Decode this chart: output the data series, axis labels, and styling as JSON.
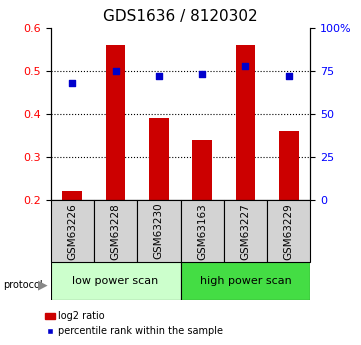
{
  "title": "GDS1636 / 8120302",
  "samples": [
    "GSM63226",
    "GSM63228",
    "GSM63230",
    "GSM63163",
    "GSM63227",
    "GSM63229"
  ],
  "log2_ratio": [
    0.22,
    0.56,
    0.39,
    0.34,
    0.56,
    0.36
  ],
  "percentile_rank": [
    68,
    75,
    72,
    73,
    78,
    72
  ],
  "bar_bottom": 0.2,
  "left_ylim": [
    0.2,
    0.6
  ],
  "right_ylim": [
    0,
    100
  ],
  "left_yticks": [
    0.2,
    0.3,
    0.4,
    0.5,
    0.6
  ],
  "right_ytick_labels": [
    "0",
    "25",
    "50",
    "75",
    "100%"
  ],
  "right_ytick_vals": [
    0,
    25,
    50,
    75,
    100
  ],
  "bar_color": "#cc0000",
  "scatter_color": "#0000cc",
  "protocol_labels": [
    "low power scan",
    "high power scan"
  ],
  "protocol_colors": [
    "#ccffcc",
    "#44dd44"
  ],
  "grid_yticks": [
    0.3,
    0.4,
    0.5
  ],
  "title_fontsize": 11,
  "tick_fontsize": 8,
  "label_fontsize": 7.5,
  "proto_fontsize": 8,
  "legend_fontsize": 7
}
